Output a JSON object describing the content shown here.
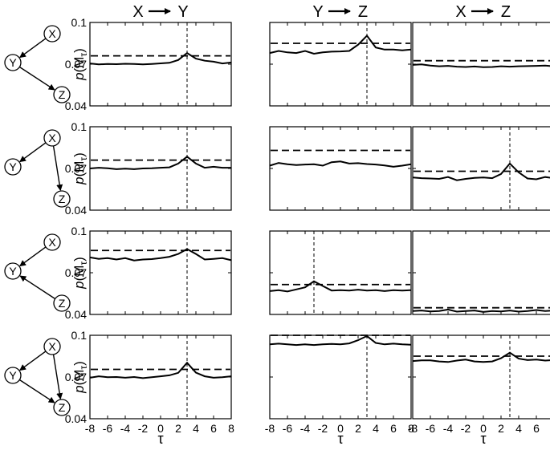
{
  "figure": {
    "column_titles": [
      {
        "from": "X",
        "to": "Y"
      },
      {
        "from": "Y",
        "to": "Z"
      },
      {
        "from": "X",
        "to": "Z"
      }
    ],
    "ylabel_prefix": "p(M",
    "ylabel_sub": "τ",
    "ylabel_suffix": ")",
    "xlabel": "τ",
    "node_labels": [
      "X",
      "Y",
      "Z"
    ],
    "graphs": [
      {
        "edges": [
          [
            "X",
            "Y"
          ],
          [
            "Y",
            "Z"
          ]
        ]
      },
      {
        "edges": [
          [
            "X",
            "Y"
          ],
          [
            "X",
            "Z"
          ]
        ]
      },
      {
        "edges": [
          [
            "X",
            "Y"
          ],
          [
            "Z",
            "Y"
          ]
        ]
      },
      {
        "edges": [
          [
            "X",
            "Y"
          ],
          [
            "Y",
            "Z"
          ],
          [
            "X",
            "Z"
          ]
        ]
      }
    ],
    "colors": {
      "line": "#000000",
      "background": "#ffffff"
    }
  },
  "chart_data": [
    {
      "type": "line",
      "row": 0,
      "col": 0,
      "xlim": [
        -8,
        8
      ],
      "ylim": [
        0.04,
        0.1
      ],
      "xticks": [
        -8,
        -6,
        -4,
        -2,
        0,
        2,
        4,
        6,
        8
      ],
      "yticks": [
        0.04,
        0.07,
        0.1
      ],
      "x": [
        -8,
        -7,
        -6,
        -5,
        -4,
        -3,
        -2,
        -1,
        0,
        1,
        2,
        3,
        4,
        5,
        6,
        7,
        8
      ],
      "values": [
        0.0705,
        0.0698,
        0.0702,
        0.07,
        0.0703,
        0.0701,
        0.0699,
        0.0702,
        0.0706,
        0.071,
        0.073,
        0.078,
        0.074,
        0.0725,
        0.0718,
        0.0705,
        0.0712
      ],
      "threshold": 0.076,
      "peak_tau": 3
    },
    {
      "type": "line",
      "row": 0,
      "col": 1,
      "xlim": [
        -8,
        8
      ],
      "ylim": [
        0.04,
        0.1
      ],
      "xticks": [
        -8,
        -6,
        -4,
        -2,
        0,
        2,
        4,
        6,
        8
      ],
      "yticks": [
        0.04,
        0.07,
        0.1
      ],
      "x": [
        -8,
        -7,
        -6,
        -5,
        -4,
        -3,
        -2,
        -1,
        0,
        1,
        2,
        3,
        4,
        5,
        6,
        7,
        8
      ],
      "values": [
        0.078,
        0.0795,
        0.0785,
        0.078,
        0.0795,
        0.0775,
        0.0785,
        0.079,
        0.0792,
        0.0795,
        0.084,
        0.0905,
        0.082,
        0.0805,
        0.0805,
        0.08,
        0.0805
      ],
      "threshold": 0.085,
      "peak_tau": 3
    },
    {
      "type": "line",
      "row": 0,
      "col": 2,
      "xlim": [
        -8,
        8
      ],
      "ylim": [
        0.04,
        0.1
      ],
      "xticks": [
        -8,
        -6,
        -4,
        -2,
        0,
        2,
        4,
        6,
        8
      ],
      "yticks": [
        0.04,
        0.07,
        0.1
      ],
      "x": [
        -8,
        -7,
        -6,
        -5,
        -4,
        -3,
        -2,
        -1,
        0,
        1,
        2,
        3,
        4,
        5,
        6,
        7,
        8
      ],
      "values": [
        0.0695,
        0.0698,
        0.069,
        0.0685,
        0.0688,
        0.0682,
        0.068,
        0.0683,
        0.0678,
        0.068,
        0.0685,
        0.0682,
        0.0685,
        0.0686,
        0.0688,
        0.069,
        0.0685
      ],
      "threshold": 0.0725,
      "peak_tau": null
    },
    {
      "type": "line",
      "row": 1,
      "col": 0,
      "xlim": [
        -8,
        8
      ],
      "ylim": [
        0.04,
        0.1
      ],
      "xticks": [
        -8,
        -6,
        -4,
        -2,
        0,
        2,
        4,
        6,
        8
      ],
      "yticks": [
        0.04,
        0.07,
        0.1
      ],
      "x": [
        -8,
        -7,
        -6,
        -5,
        -4,
        -3,
        -2,
        -1,
        0,
        1,
        2,
        3,
        4,
        5,
        6,
        7,
        8
      ],
      "values": [
        0.07,
        0.0705,
        0.0702,
        0.0695,
        0.0698,
        0.0695,
        0.07,
        0.0702,
        0.0705,
        0.0708,
        0.0735,
        0.0785,
        0.0735,
        0.0705,
        0.0712,
        0.0705,
        0.0705
      ],
      "threshold": 0.076,
      "peak_tau": 3
    },
    {
      "type": "line",
      "row": 1,
      "col": 1,
      "xlim": [
        -8,
        8
      ],
      "ylim": [
        0.04,
        0.1
      ],
      "xticks": [
        -8,
        -6,
        -4,
        -2,
        0,
        2,
        4,
        6,
        8
      ],
      "yticks": [
        0.04,
        0.07,
        0.1
      ],
      "x": [
        -8,
        -7,
        -6,
        -5,
        -4,
        -3,
        -2,
        -1,
        0,
        1,
        2,
        3,
        4,
        5,
        6,
        7,
        8
      ],
      "values": [
        0.072,
        0.074,
        0.073,
        0.0725,
        0.0728,
        0.073,
        0.072,
        0.0745,
        0.075,
        0.0735,
        0.0738,
        0.0732,
        0.0728,
        0.0722,
        0.0712,
        0.072,
        0.073
      ],
      "threshold": 0.083,
      "peak_tau": null
    },
    {
      "type": "line",
      "row": 1,
      "col": 2,
      "xlim": [
        -8,
        8
      ],
      "ylim": [
        0.04,
        0.1
      ],
      "xticks": [
        -8,
        -6,
        -4,
        -2,
        0,
        2,
        4,
        6,
        8
      ],
      "yticks": [
        0.04,
        0.07,
        0.1
      ],
      "x": [
        -8,
        -7,
        -6,
        -5,
        -4,
        -3,
        -2,
        -1,
        0,
        1,
        2,
        3,
        4,
        5,
        6,
        7,
        8
      ],
      "values": [
        0.0635,
        0.063,
        0.0628,
        0.0625,
        0.0638,
        0.0615,
        0.0625,
        0.0632,
        0.0635,
        0.063,
        0.066,
        0.0735,
        0.0672,
        0.0628,
        0.0622,
        0.0638,
        0.063
      ],
      "threshold": 0.068,
      "peak_tau": 3
    },
    {
      "type": "line",
      "row": 2,
      "col": 0,
      "xlim": [
        -8,
        8
      ],
      "ylim": [
        0.04,
        0.1
      ],
      "xticks": [
        -8,
        -6,
        -4,
        -2,
        0,
        2,
        4,
        6,
        8
      ],
      "yticks": [
        0.04,
        0.07,
        0.1
      ],
      "x": [
        -8,
        -7,
        -6,
        -5,
        -4,
        -3,
        -2,
        -1,
        0,
        1,
        2,
        3,
        4,
        5,
        6,
        7,
        8
      ],
      "values": [
        0.081,
        0.08,
        0.0805,
        0.0795,
        0.0805,
        0.0788,
        0.0795,
        0.0798,
        0.0805,
        0.0815,
        0.0835,
        0.087,
        0.0835,
        0.0795,
        0.08,
        0.0805,
        0.079
      ],
      "threshold": 0.086,
      "peak_tau": 3
    },
    {
      "type": "line",
      "row": 2,
      "col": 1,
      "xlim": [
        -8,
        8
      ],
      "ylim": [
        0.04,
        0.1
      ],
      "xticks": [
        -8,
        -6,
        -4,
        -2,
        0,
        2,
        4,
        6,
        8
      ],
      "yticks": [
        0.04,
        0.07,
        0.1
      ],
      "x": [
        -8,
        -7,
        -6,
        -5,
        -4,
        -3,
        -2,
        -1,
        0,
        1,
        2,
        3,
        4,
        5,
        6,
        7,
        8
      ],
      "values": [
        0.0568,
        0.0575,
        0.0565,
        0.058,
        0.0595,
        0.0638,
        0.0605,
        0.0572,
        0.0575,
        0.0572,
        0.0578,
        0.0572,
        0.0575,
        0.0568,
        0.0575,
        0.0572,
        0.0575
      ],
      "threshold": 0.0615,
      "peak_tau": -3
    },
    {
      "type": "line",
      "row": 2,
      "col": 2,
      "xlim": [
        -8,
        8
      ],
      "ylim": [
        0.04,
        0.1
      ],
      "xticks": [
        -8,
        -6,
        -4,
        -2,
        0,
        2,
        4,
        6,
        8
      ],
      "yticks": [
        0.04,
        0.07,
        0.1
      ],
      "x": [
        -8,
        -7,
        -6,
        -5,
        -4,
        -3,
        -2,
        -1,
        0,
        1,
        2,
        3,
        4,
        5,
        6,
        7,
        8
      ],
      "values": [
        0.0425,
        0.0428,
        0.0422,
        0.0425,
        0.0435,
        0.042,
        0.0425,
        0.0428,
        0.0418,
        0.0425,
        0.0422,
        0.0428,
        0.042,
        0.0425,
        0.0432,
        0.0425,
        0.0428
      ],
      "threshold": 0.0448,
      "peak_tau": null
    },
    {
      "type": "line",
      "row": 3,
      "col": 0,
      "xlim": [
        -8,
        8
      ],
      "ylim": [
        0.04,
        0.1
      ],
      "xticks": [
        -8,
        -6,
        -4,
        -2,
        0,
        2,
        4,
        6,
        8
      ],
      "yticks": [
        0.04,
        0.07,
        0.1
      ],
      "x": [
        -8,
        -7,
        -6,
        -5,
        -4,
        -3,
        -2,
        -1,
        0,
        1,
        2,
        3,
        4,
        5,
        6,
        7,
        8
      ],
      "values": [
        0.0695,
        0.0705,
        0.0698,
        0.07,
        0.0695,
        0.07,
        0.0692,
        0.0698,
        0.0705,
        0.0712,
        0.073,
        0.0802,
        0.0732,
        0.0705,
        0.0695,
        0.0698,
        0.0705
      ],
      "threshold": 0.0755,
      "peak_tau": 3
    },
    {
      "type": "line",
      "row": 3,
      "col": 1,
      "xlim": [
        -8,
        8
      ],
      "ylim": [
        0.04,
        0.1
      ],
      "xticks": [
        -8,
        -6,
        -4,
        -2,
        0,
        2,
        4,
        6,
        8
      ],
      "yticks": [
        0.04,
        0.07,
        0.1
      ],
      "x": [
        -8,
        -7,
        -6,
        -5,
        -4,
        -3,
        -2,
        -1,
        0,
        1,
        2,
        3,
        4,
        5,
        6,
        7,
        8
      ],
      "values": [
        0.0935,
        0.094,
        0.0935,
        0.093,
        0.0935,
        0.093,
        0.0935,
        0.0938,
        0.0935,
        0.0942,
        0.0965,
        0.0995,
        0.0945,
        0.0935,
        0.094,
        0.0935,
        0.0932
      ],
      "threshold": 0.1,
      "peak_tau": 3
    },
    {
      "type": "line",
      "row": 3,
      "col": 2,
      "xlim": [
        -8,
        8
      ],
      "ylim": [
        0.04,
        0.1
      ],
      "xticks": [
        -8,
        -6,
        -4,
        -2,
        0,
        2,
        4,
        6,
        8
      ],
      "yticks": [
        0.04,
        0.07,
        0.1
      ],
      "x": [
        -8,
        -7,
        -6,
        -5,
        -4,
        -3,
        -2,
        -1,
        0,
        1,
        2,
        3,
        4,
        5,
        6,
        7,
        8
      ],
      "values": [
        0.0815,
        0.082,
        0.082,
        0.0812,
        0.0808,
        0.0818,
        0.0825,
        0.0812,
        0.0808,
        0.0812,
        0.0835,
        0.0875,
        0.0832,
        0.0822,
        0.0825,
        0.0818,
        0.0822
      ],
      "threshold": 0.085,
      "peak_tau": 3
    }
  ]
}
